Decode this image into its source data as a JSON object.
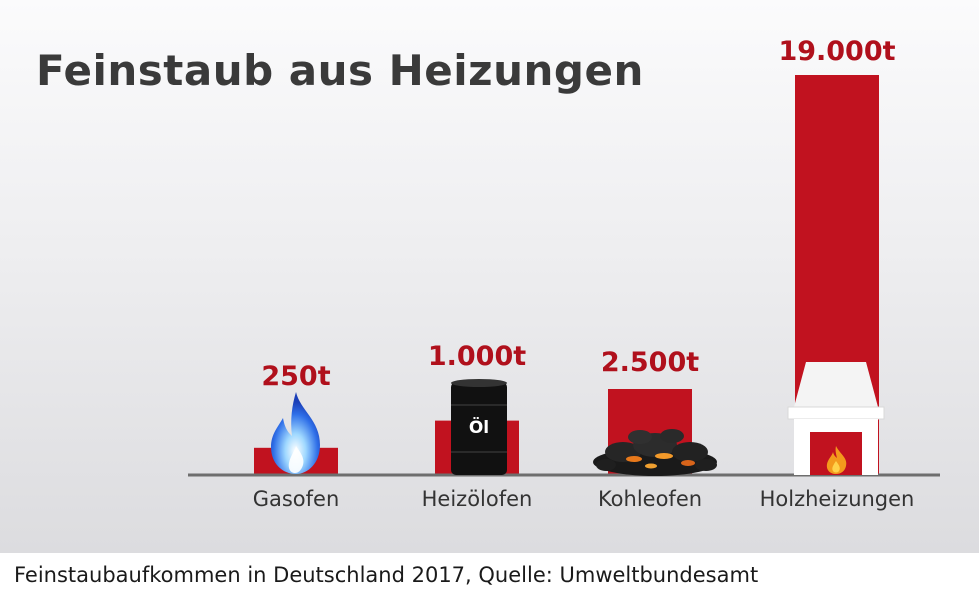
{
  "caption": "Feinstaubaufkommen in Deutschland 2017, Quelle: Umweltbundesamt",
  "icons": {
    "gasofen": "flame-icon",
    "heizoelofen": "oil-barrel-icon",
    "kohleofen": "coal-pile-icon",
    "holzheizungen": "fireplace-icon",
    "oil_barrel_label": "Öl"
  },
  "colors": {
    "bar": "#c1121f",
    "value_label": "#b0101c",
    "category_label": "#333333",
    "title": "#3a3a3a"
  },
  "chart_data": {
    "type": "bar",
    "title": "Feinstaub aus Heizungen",
    "unit": "t",
    "categories": [
      "Gasofen",
      "Heizölofen",
      "Kohleofen",
      "Holzheizungen"
    ],
    "values": [
      250,
      1000,
      2500,
      19000
    ],
    "value_labels": [
      "250t",
      "1.000t",
      "2.500t",
      "19.000t"
    ],
    "xlabel": "",
    "ylabel": "",
    "grid": false,
    "legend": "none"
  }
}
